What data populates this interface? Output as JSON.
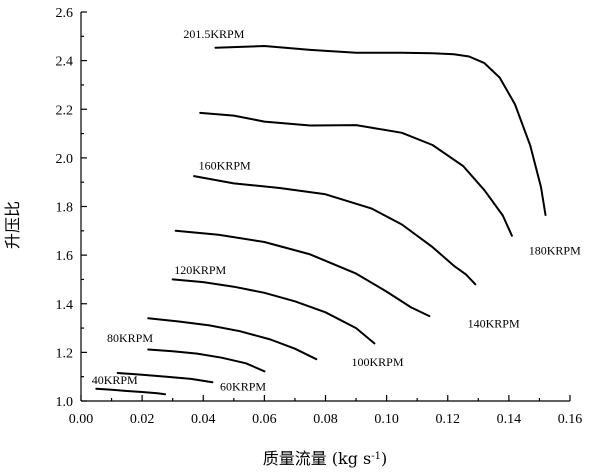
{
  "chart_data": {
    "type": "line",
    "xlabel": "质量流量 (kg s",
    "xlabel_sup": "-1",
    "xlabel_close": ")",
    "ylabel": "升压比",
    "xlim": [
      0.0,
      0.16
    ],
    "ylim": [
      1.0,
      2.6
    ],
    "xticks": [
      0.0,
      0.02,
      0.04,
      0.06,
      0.08,
      0.1,
      0.12,
      0.14,
      0.16
    ],
    "xtick_labels": [
      "0.00",
      "0.02",
      "0.04",
      "0.06",
      "0.08",
      "0.10",
      "0.12",
      "0.14",
      "0.16"
    ],
    "yticks": [
      1.0,
      1.2,
      1.4,
      1.6,
      1.8,
      2.0,
      2.2,
      2.4,
      2.6
    ],
    "ytick_labels": [
      "1.0",
      "1.2",
      "1.4",
      "1.6",
      "1.8",
      "2.0",
      "2.2",
      "2.4",
      "2.6"
    ],
    "grid": false,
    "legend": "none",
    "series": [
      {
        "name": "40KRPM",
        "label_at": [
          0.0035,
          1.07
        ],
        "x": [
          0.005,
          0.01,
          0.015,
          0.02,
          0.025,
          0.0275
        ],
        "y": [
          1.05,
          1.046,
          1.041,
          1.037,
          1.032,
          1.028
        ]
      },
      {
        "name": "60KRPM",
        "label_at": [
          0.0455,
          1.043
        ],
        "x": [
          0.012,
          0.02,
          0.028,
          0.036,
          0.043
        ],
        "y": [
          1.115,
          1.108,
          1.1,
          1.091,
          1.077
        ]
      },
      {
        "name": "80KRPM",
        "label_at": [
          0.0085,
          1.243
        ],
        "x": [
          0.022,
          0.03,
          0.038,
          0.046,
          0.054,
          0.06
        ],
        "y": [
          1.212,
          1.205,
          1.195,
          1.178,
          1.155,
          1.122
        ]
      },
      {
        "name": "100KRPM",
        "label_at": [
          0.0885,
          1.143
        ],
        "x": [
          0.022,
          0.032,
          0.042,
          0.052,
          0.062,
          0.07,
          0.077
        ],
        "y": [
          1.34,
          1.327,
          1.311,
          1.287,
          1.253,
          1.215,
          1.172
        ]
      },
      {
        "name": "120KRPM",
        "label_at": [
          0.0305,
          1.523
        ],
        "x": [
          0.03,
          0.04,
          0.05,
          0.06,
          0.07,
          0.08,
          0.09,
          0.096
        ],
        "y": [
          1.5,
          1.489,
          1.47,
          1.445,
          1.41,
          1.365,
          1.3,
          1.237
        ]
      },
      {
        "name": "140KRPM",
        "label_at": [
          0.1265,
          1.303
        ],
        "x": [
          0.031,
          0.045,
          0.06,
          0.075,
          0.09,
          0.1,
          0.108,
          0.114
        ],
        "y": [
          1.7,
          1.684,
          1.654,
          1.603,
          1.524,
          1.45,
          1.385,
          1.349
        ]
      },
      {
        "name": "160KRPM",
        "label_at": [
          0.0385,
          1.953
        ],
        "x": [
          0.037,
          0.05,
          0.065,
          0.08,
          0.095,
          0.105,
          0.115,
          0.122,
          0.126,
          0.129
        ],
        "y": [
          1.925,
          1.895,
          1.876,
          1.85,
          1.792,
          1.726,
          1.633,
          1.556,
          1.52,
          1.48
        ]
      },
      {
        "name": "180KRPM",
        "label_at": [
          0.1465,
          1.603
        ],
        "x": [
          0.039,
          0.05,
          0.06,
          0.075,
          0.09,
          0.105,
          0.115,
          0.125,
          0.132,
          0.138,
          0.141
        ],
        "y": [
          2.185,
          2.174,
          2.149,
          2.133,
          2.135,
          2.103,
          2.053,
          1.967,
          1.867,
          1.763,
          1.68
        ]
      },
      {
        "name": "201.5KRPM",
        "label_at": [
          0.0335,
          2.493
        ],
        "x": [
          0.044,
          0.06,
          0.075,
          0.09,
          0.105,
          0.115,
          0.122,
          0.127,
          0.132,
          0.137,
          0.142,
          0.147,
          0.1505,
          0.152
        ],
        "y": [
          2.453,
          2.46,
          2.444,
          2.432,
          2.432,
          2.43,
          2.426,
          2.417,
          2.39,
          2.33,
          2.22,
          2.05,
          1.88,
          1.765
        ]
      }
    ]
  }
}
